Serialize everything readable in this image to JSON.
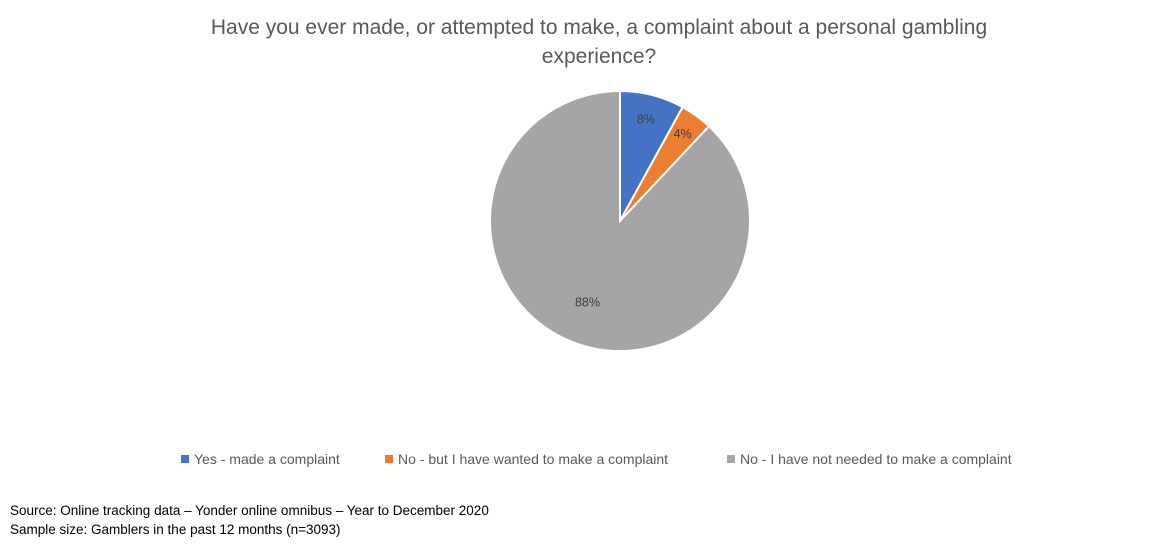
{
  "chart_data": {
    "type": "pie",
    "title_line1": "Have you ever made, or attempted to make, a complaint about a personal gambling",
    "title_line2": "experience?",
    "slices": [
      {
        "label": "Yes - made a complaint",
        "value": 8,
        "display": "8%",
        "color": "#4472C4"
      },
      {
        "label": "No - but I have wanted to make a complaint",
        "value": 4,
        "display": "4%",
        "color": "#ED7D31"
      },
      {
        "label": "No - I have not needed to make a complaint",
        "value": 88,
        "display": "88%",
        "color": "#A5A5A5"
      }
    ],
    "legend_position": "bottom"
  },
  "footnotes": {
    "source": "Source: Online tracking data – Yonder online omnibus – Year to December 2020",
    "sample": "Sample size: Gamblers in the past 12 months (n=3093)"
  }
}
